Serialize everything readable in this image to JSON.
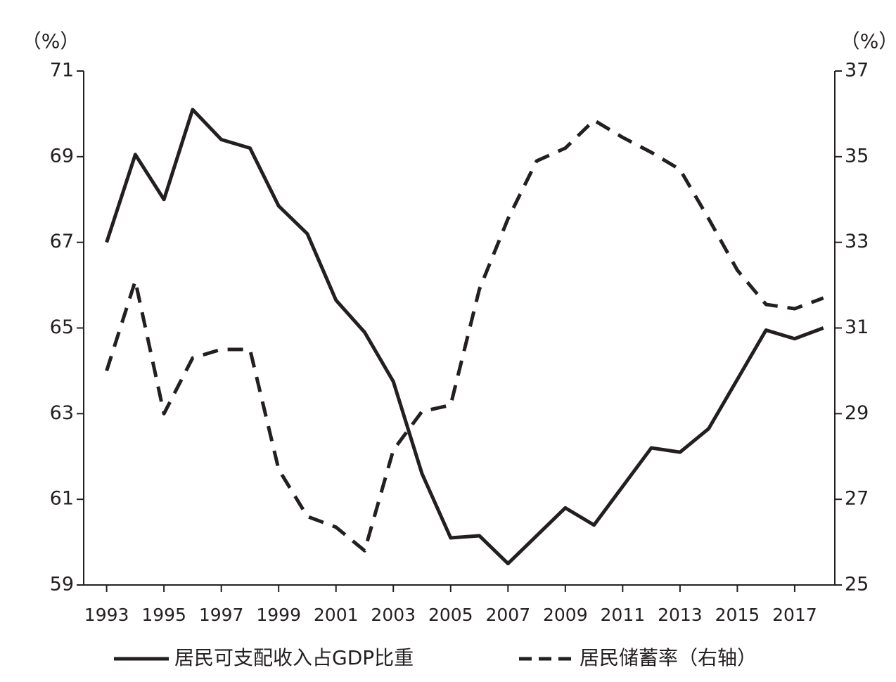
{
  "chart_data": {
    "type": "line",
    "y_unit": "（%）",
    "y2_unit": "（%）",
    "x": [
      1993,
      1994,
      1995,
      1996,
      1997,
      1998,
      1999,
      2000,
      2001,
      2002,
      2003,
      2004,
      2005,
      2006,
      2007,
      2008,
      2009,
      2010,
      2011,
      2012,
      2013,
      2014,
      2015,
      2016,
      2017,
      2018
    ],
    "series": [
      {
        "name": "居民可支配收入占GDP比重",
        "color": "#231f20",
        "dash": "solid",
        "values": [
          67.0,
          69.05,
          68.0,
          70.1,
          69.4,
          69.2,
          67.85,
          67.2,
          65.65,
          64.9,
          63.75,
          61.6,
          60.1,
          60.15,
          59.5,
          60.15,
          60.8,
          60.4,
          61.3,
          62.2,
          62.1,
          62.65,
          63.8,
          64.95,
          64.75,
          65.0
        ]
      },
      {
        "name": "居民储蓄率（右轴）",
        "color": "#231f20",
        "dash": "dashed",
        "axis": "y2",
        "values": [
          30.0,
          32.1,
          29.0,
          30.3,
          30.5,
          30.5,
          27.7,
          26.6,
          26.35,
          25.8,
          28.15,
          29.05,
          29.2,
          31.9,
          33.55,
          34.9,
          35.2,
          35.85,
          35.45,
          35.1,
          34.7,
          33.55,
          32.35,
          31.55,
          31.45,
          31.7
        ]
      }
    ],
    "xlim": [
      1992.2,
      2018.4
    ],
    "xticks": [
      1993,
      1995,
      1997,
      1999,
      2001,
      2003,
      2005,
      2007,
      2009,
      2011,
      2013,
      2015,
      2017
    ],
    "ylim": [
      59,
      71
    ],
    "yticks": [
      59,
      61,
      63,
      65,
      67,
      69,
      71
    ],
    "y2lim": [
      25,
      37
    ],
    "y2ticks": [
      25,
      27,
      29,
      31,
      33,
      35,
      37
    ],
    "legend": "bottom"
  }
}
